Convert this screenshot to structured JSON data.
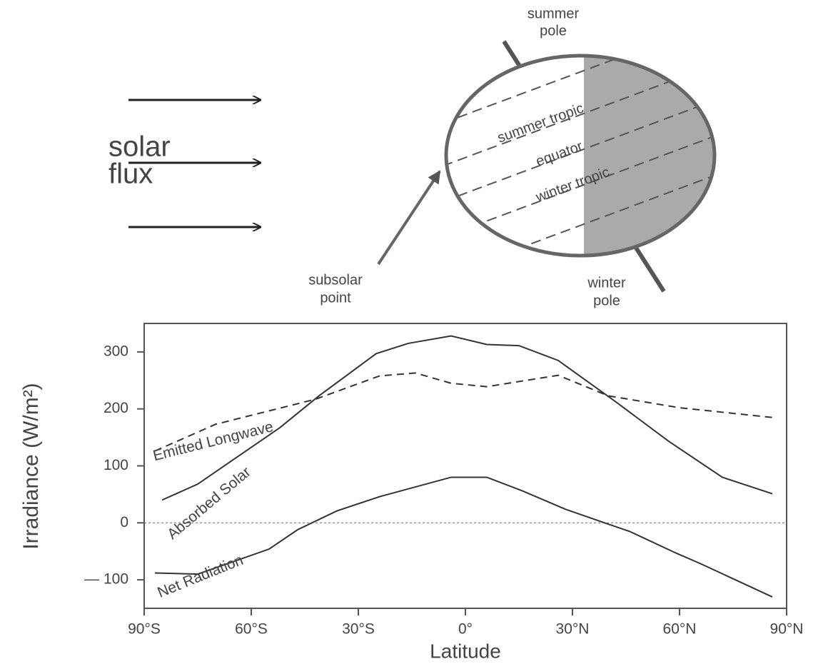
{
  "diagram": {
    "flux_label": [
      "solar",
      "flux"
    ],
    "summer_pole": [
      "summer",
      "pole"
    ],
    "winter_pole": [
      "winter",
      "pole"
    ],
    "subsolar_point": [
      "subsolar",
      "point"
    ],
    "summer_tropic": "summer tropic",
    "equator": "equator",
    "winter_tropic": "winter tropic"
  },
  "chart_data": {
    "type": "line",
    "xlabel": "Latitude",
    "ylabel": "Irradiance (W/m²)",
    "xlim": [
      -90,
      90
    ],
    "xticks": [
      {
        "value": -90,
        "label": "90°S"
      },
      {
        "value": -60,
        "label": "60°S"
      },
      {
        "value": -30,
        "label": "30°S"
      },
      {
        "value": 0,
        "label": "0°"
      },
      {
        "value": 30,
        "label": "30°N"
      },
      {
        "value": 60,
        "label": "60°N"
      },
      {
        "value": 90,
        "label": "90°N"
      }
    ],
    "ylim": [
      -150,
      350
    ],
    "yticks": [
      {
        "value": -100,
        "label": "— 100"
      },
      0,
      100,
      200,
      300
    ],
    "reference_line": 0,
    "series": [
      {
        "name": "Emitted Longwave",
        "color": "#333333",
        "style": "dashed",
        "x": [
          -87,
          -70,
          -42,
          -24,
          -14,
          -4,
          6,
          26,
          40,
          60,
          86
        ],
        "values": [
          126,
          173,
          217,
          258,
          263,
          245,
          239,
          259,
          223,
          202,
          185
        ]
      },
      {
        "name": "Absorbed Solar",
        "color": "#333333",
        "style": "solid",
        "x": [
          -85,
          -75,
          -52,
          -41,
          -25,
          -16,
          -4,
          6,
          15,
          26,
          42,
          57,
          72,
          86
        ],
        "values": [
          40,
          68,
          167,
          223,
          297,
          315,
          328,
          313,
          311,
          285,
          213,
          143,
          80,
          51
        ]
      },
      {
        "name": "Net Radiation",
        "color": "#333333",
        "style": "solid",
        "x": [
          -87,
          -75,
          -55,
          -47,
          -36,
          -24,
          -4,
          6,
          16,
          28,
          39,
          46,
          59,
          66,
          86
        ],
        "values": [
          -88,
          -90,
          -46,
          -12,
          21,
          46,
          80,
          80,
          56,
          24,
          0,
          -15,
          -53,
          -72,
          -130
        ]
      }
    ]
  }
}
